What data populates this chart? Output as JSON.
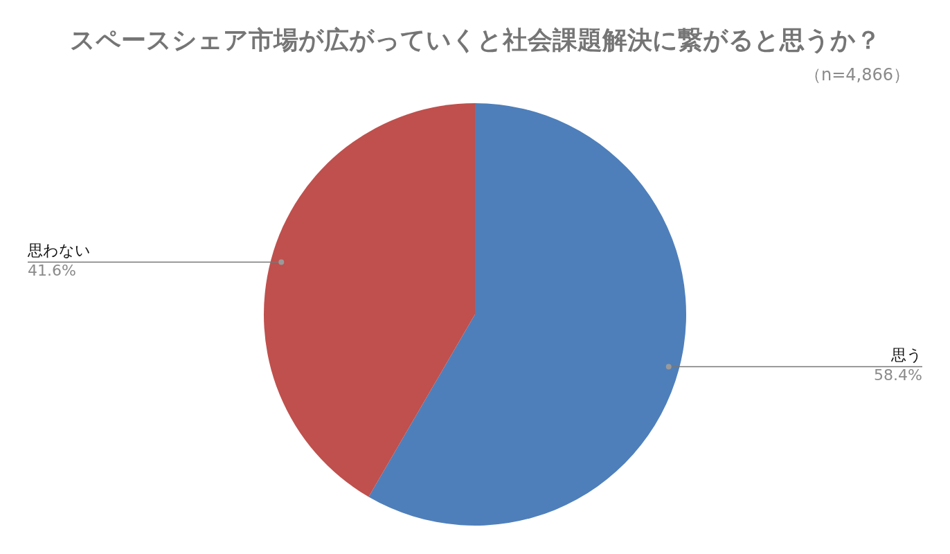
{
  "chart_data": {
    "type": "pie",
    "title": "スペースシェア市場が広がっていくと社会課題解決に繋がると思うか？",
    "subtitle": "（n=4,866）",
    "categories": [
      "思う",
      "思わない"
    ],
    "values": [
      58.4,
      41.6
    ],
    "colors": [
      "#4e7fba",
      "#bf504d"
    ],
    "value_labels": [
      "58.4%",
      "41.6%"
    ],
    "legend": false
  }
}
